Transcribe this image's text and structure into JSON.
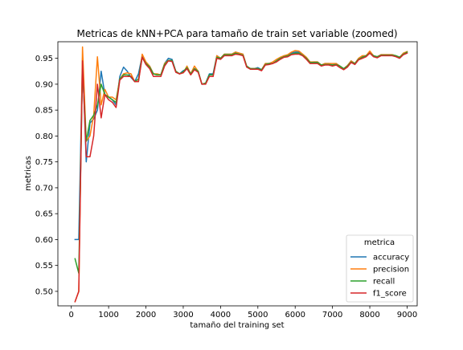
{
  "chart_data": {
    "type": "line",
    "title": "Metricas de kNN+PCA para tamaño de train set variable (zoomed)",
    "xlabel": "tamaño del training set",
    "ylabel": "metricas",
    "xlim": [
      -360,
      9270
    ],
    "ylim": [
      0.472,
      0.982
    ],
    "xticks": [
      0,
      1000,
      2000,
      3000,
      4000,
      5000,
      6000,
      7000,
      8000,
      9000
    ],
    "yticks": [
      0.5,
      0.55,
      0.6,
      0.65,
      0.7,
      0.75,
      0.8,
      0.85,
      0.9,
      0.95
    ],
    "ytick_labels": [
      "0.50",
      "0.55",
      "0.60",
      "0.65",
      "0.70",
      "0.75",
      "0.80",
      "0.85",
      "0.90",
      "0.95"
    ],
    "grid": false,
    "legend": {
      "title": "metrica",
      "position": "lower-right"
    },
    "x": [
      100,
      200,
      300,
      400,
      500,
      600,
      700,
      800,
      900,
      1000,
      1100,
      1200,
      1300,
      1400,
      1500,
      1600,
      1700,
      1800,
      1900,
      2000,
      2100,
      2200,
      2300,
      2400,
      2500,
      2600,
      2700,
      2800,
      2900,
      3000,
      3100,
      3200,
      3300,
      3400,
      3500,
      3600,
      3700,
      3800,
      3900,
      4000,
      4100,
      4200,
      4300,
      4400,
      4500,
      4600,
      4700,
      4800,
      4900,
      5000,
      5100,
      5200,
      5300,
      5400,
      5500,
      5600,
      5700,
      5800,
      5900,
      6000,
      6100,
      6200,
      6300,
      6400,
      6500,
      6600,
      6700,
      6800,
      6900,
      7000,
      7100,
      7200,
      7300,
      7400,
      7500,
      7600,
      7700,
      7800,
      7900,
      8000,
      8100,
      8200,
      8300,
      8400,
      8500,
      8600,
      8700,
      8800,
      8900,
      9000
    ],
    "series": [
      {
        "name": "accuracy",
        "color": "#1f77b4",
        "values": [
          0.6,
          0.6,
          0.95,
          0.75,
          0.825,
          0.833,
          0.85,
          0.925,
          0.88,
          0.875,
          0.87,
          0.86,
          0.915,
          0.933,
          0.925,
          0.913,
          0.905,
          0.92,
          0.955,
          0.94,
          0.935,
          0.92,
          0.918,
          0.918,
          0.94,
          0.95,
          0.948,
          0.925,
          0.92,
          0.926,
          0.93,
          0.92,
          0.93,
          0.925,
          0.9,
          0.902,
          0.92,
          0.92,
          0.955,
          0.95,
          0.958,
          0.958,
          0.958,
          0.962,
          0.96,
          0.958,
          0.935,
          0.93,
          0.93,
          0.932,
          0.928,
          0.94,
          0.94,
          0.94,
          0.945,
          0.95,
          0.955,
          0.955,
          0.96,
          0.962,
          0.962,
          0.958,
          0.95,
          0.942,
          0.943,
          0.943,
          0.937,
          0.94,
          0.94,
          0.937,
          0.94,
          0.935,
          0.93,
          0.936,
          0.945,
          0.94,
          0.95,
          0.953,
          0.955,
          0.962,
          0.955,
          0.953,
          0.957,
          0.957,
          0.957,
          0.957,
          0.955,
          0.952,
          0.96,
          0.962
        ]
      },
      {
        "name": "precision",
        "color": "#ff7f0e",
        "values": [
          0.48,
          0.5,
          0.972,
          0.79,
          0.8,
          0.84,
          0.953,
          0.86,
          0.89,
          0.875,
          0.875,
          0.87,
          0.91,
          0.92,
          0.922,
          0.92,
          0.905,
          0.905,
          0.958,
          0.943,
          0.935,
          0.92,
          0.92,
          0.918,
          0.94,
          0.946,
          0.945,
          0.925,
          0.92,
          0.922,
          0.935,
          0.92,
          0.935,
          0.925,
          0.9,
          0.902,
          0.915,
          0.915,
          0.955,
          0.95,
          0.958,
          0.958,
          0.958,
          0.962,
          0.96,
          0.958,
          0.935,
          0.93,
          0.93,
          0.93,
          0.928,
          0.94,
          0.94,
          0.943,
          0.948,
          0.952,
          0.955,
          0.957,
          0.962,
          0.965,
          0.964,
          0.958,
          0.952,
          0.943,
          0.943,
          0.943,
          0.937,
          0.94,
          0.94,
          0.94,
          0.94,
          0.935,
          0.93,
          0.936,
          0.945,
          0.94,
          0.95,
          0.955,
          0.955,
          0.964,
          0.955,
          0.953,
          0.957,
          0.957,
          0.957,
          0.957,
          0.955,
          0.952,
          0.96,
          0.963
        ]
      },
      {
        "name": "recall",
        "color": "#2ca02c",
        "values": [
          0.563,
          0.535,
          0.93,
          0.79,
          0.83,
          0.84,
          0.86,
          0.9,
          0.88,
          0.875,
          0.87,
          0.865,
          0.91,
          0.918,
          0.918,
          0.915,
          0.905,
          0.91,
          0.952,
          0.94,
          0.933,
          0.92,
          0.918,
          0.918,
          0.938,
          0.946,
          0.946,
          0.925,
          0.92,
          0.924,
          0.932,
          0.92,
          0.93,
          0.925,
          0.9,
          0.902,
          0.918,
          0.918,
          0.952,
          0.95,
          0.957,
          0.957,
          0.957,
          0.96,
          0.958,
          0.956,
          0.935,
          0.93,
          0.93,
          0.93,
          0.928,
          0.938,
          0.94,
          0.94,
          0.945,
          0.95,
          0.953,
          0.955,
          0.958,
          0.96,
          0.96,
          0.956,
          0.95,
          0.942,
          0.942,
          0.942,
          0.937,
          0.938,
          0.938,
          0.937,
          0.938,
          0.935,
          0.93,
          0.935,
          0.943,
          0.94,
          0.948,
          0.952,
          0.955,
          0.96,
          0.955,
          0.953,
          0.956,
          0.956,
          0.956,
          0.956,
          0.955,
          0.952,
          0.958,
          0.962
        ]
      },
      {
        "name": "f1_score",
        "color": "#d62728",
        "values": [
          0.48,
          0.5,
          0.945,
          0.76,
          0.76,
          0.8,
          0.9,
          0.835,
          0.88,
          0.87,
          0.865,
          0.855,
          0.908,
          0.915,
          0.915,
          0.915,
          0.905,
          0.905,
          0.952,
          0.938,
          0.93,
          0.915,
          0.915,
          0.915,
          0.935,
          0.945,
          0.944,
          0.923,
          0.92,
          0.922,
          0.93,
          0.918,
          0.928,
          0.923,
          0.9,
          0.9,
          0.915,
          0.915,
          0.95,
          0.948,
          0.955,
          0.955,
          0.955,
          0.958,
          0.957,
          0.955,
          0.933,
          0.929,
          0.929,
          0.929,
          0.926,
          0.937,
          0.938,
          0.94,
          0.943,
          0.948,
          0.952,
          0.953,
          0.957,
          0.958,
          0.958,
          0.955,
          0.948,
          0.94,
          0.94,
          0.94,
          0.935,
          0.937,
          0.937,
          0.935,
          0.937,
          0.932,
          0.928,
          0.933,
          0.942,
          0.938,
          0.947,
          0.95,
          0.953,
          0.96,
          0.953,
          0.951,
          0.955,
          0.955,
          0.955,
          0.955,
          0.953,
          0.95,
          0.957,
          0.96
        ]
      }
    ]
  }
}
